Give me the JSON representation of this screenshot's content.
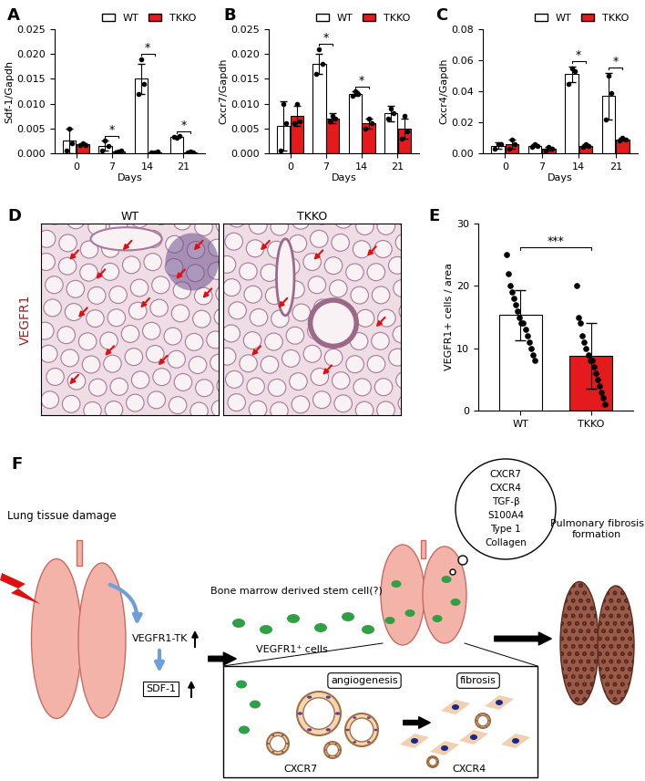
{
  "chart_data": [
    {
      "panel_label": "A",
      "type": "bar",
      "categories": [
        "0",
        "7",
        "14",
        "21"
      ],
      "xlabel": "Days",
      "ylabel": "Sdf-1/Gapdh",
      "ylim": [
        0,
        0.025
      ],
      "yticks": [
        {
          "value": 0,
          "label": "0.000"
        },
        {
          "value": 0.005,
          "label": "0.005"
        },
        {
          "value": 0.01,
          "label": "0.010"
        },
        {
          "value": 0.015,
          "label": "0.015"
        },
        {
          "value": 0.02,
          "label": "0.020"
        },
        {
          "value": 0.025,
          "label": "0.025"
        }
      ],
      "legend": "upper right",
      "series": [
        {
          "name": "WT",
          "color": "#ffffff",
          "values": [
            0.0025,
            0.0015,
            0.015,
            0.0033
          ],
          "errors": [
            0.0025,
            0.001,
            0.003,
            0.0002
          ],
          "points": [
            [
              0.0005,
              0.005,
              0.002
            ],
            [
              0.0005,
              0.0025,
              0.0015
            ],
            [
              0.012,
              0.019,
              0.014
            ],
            [
              0.0033,
              0.0032,
              0.0035
            ]
          ]
        },
        {
          "name": "TKKO",
          "color": "#e41a1c",
          "values": [
            0.0018,
            0.0003,
            0.0002,
            0.0002
          ],
          "errors": [
            0.0002,
            0.0002,
            0.0001,
            0.0002
          ],
          "points": [
            [
              0.0017,
              0.002,
              0.0017
            ],
            [
              0.0001,
              0.0003,
              0.0005
            ],
            [
              0.0002,
              0.0001,
              0.0003
            ],
            [
              0.0001,
              0.0004,
              0.0001
            ]
          ]
        }
      ],
      "annotations": [
        {
          "categories": [
            "7"
          ],
          "text": "*"
        },
        {
          "categories": [
            "14"
          ],
          "text": "*"
        },
        {
          "categories": [
            "21"
          ],
          "text": "*"
        }
      ]
    },
    {
      "panel_label": "B",
      "type": "bar",
      "categories": [
        "0",
        "7",
        "14",
        "21"
      ],
      "xlabel": "Days",
      "ylabel": "Cxcr7/Gapdh",
      "ylim": [
        0,
        0.025
      ],
      "yticks": [
        {
          "value": 0,
          "label": "0.000"
        },
        {
          "value": 0.005,
          "label": "0.005"
        },
        {
          "value": 0.01,
          "label": "0.010"
        },
        {
          "value": 0.015,
          "label": "0.015"
        },
        {
          "value": 0.02,
          "label": "0.020"
        },
        {
          "value": 0.025,
          "label": "0.025"
        }
      ],
      "legend": "upper right",
      "series": [
        {
          "name": "WT",
          "color": "#ffffff",
          "values": [
            0.0055,
            0.018,
            0.012,
            0.008
          ],
          "errors": [
            0.005,
            0.002,
            0.0005,
            0.0015
          ],
          "points": [
            [
              0.0005,
              0.01,
              0.006
            ],
            [
              0.016,
              0.021,
              0.018
            ],
            [
              0.0115,
              0.0125,
              0.012
            ],
            [
              0.007,
              0.009,
              0.008
            ]
          ]
        },
        {
          "name": "TKKO",
          "color": "#e41a1c",
          "values": [
            0.0075,
            0.007,
            0.006,
            0.005
          ],
          "errors": [
            0.002,
            0.001,
            0.001,
            0.002
          ],
          "points": [
            [
              0.006,
              0.01,
              0.0065
            ],
            [
              0.0065,
              0.0075,
              0.007
            ],
            [
              0.005,
              0.007,
              0.006
            ],
            [
              0.003,
              0.0075,
              0.0045
            ]
          ]
        }
      ],
      "annotations": [
        {
          "categories": [
            "7"
          ],
          "text": "*"
        },
        {
          "categories": [
            "14"
          ],
          "text": "*"
        }
      ]
    },
    {
      "panel_label": "C",
      "type": "bar",
      "categories": [
        "0",
        "7",
        "14",
        "21"
      ],
      "xlabel": "Days",
      "ylabel": "Cxcr4/Gapdh",
      "ylim": [
        0,
        0.08
      ],
      "yticks": [
        {
          "value": 0,
          "label": "0.00"
        },
        {
          "value": 0.02,
          "label": "0.02"
        },
        {
          "value": 0.04,
          "label": "0.04"
        },
        {
          "value": 0.06,
          "label": "0.06"
        },
        {
          "value": 0.08,
          "label": "0.08"
        }
      ],
      "legend": "upper right",
      "series": [
        {
          "name": "WT",
          "color": "#ffffff",
          "values": [
            0.005,
            0.005,
            0.051,
            0.037
          ],
          "errors": [
            0.002,
            0.001,
            0.005,
            0.015
          ],
          "points": [
            [
              0.003,
              0.006,
              0.006
            ],
            [
              0.004,
              0.006,
              0.005
            ],
            [
              0.045,
              0.055,
              0.053
            ],
            [
              0.022,
              0.05,
              0.039
            ]
          ]
        },
        {
          "name": "TKKO",
          "color": "#e41a1c",
          "values": [
            0.006,
            0.003,
            0.005,
            0.009
          ],
          "errors": [
            0.003,
            0.001,
            0.001,
            0.001
          ],
          "points": [
            [
              0.003,
              0.009,
              0.006
            ],
            [
              0.002,
              0.004,
              0.003
            ],
            [
              0.004,
              0.006,
              0.005
            ],
            [
              0.008,
              0.01,
              0.009
            ]
          ]
        }
      ],
      "annotations": [
        {
          "categories": [
            "14"
          ],
          "text": "*"
        },
        {
          "categories": [
            "21"
          ],
          "text": "*"
        }
      ]
    },
    {
      "panel_label": "E",
      "type": "bar",
      "categories": [
        "WT",
        "TKKO"
      ],
      "ylabel": "VEGFR1+ cells / area",
      "ylim": [
        0,
        30
      ],
      "yticks": [
        0,
        10,
        20,
        30
      ],
      "values": [
        15.3,
        8.8
      ],
      "errors": [
        4.0,
        5.3
      ],
      "colors": [
        "#ffffff",
        "#e41a1c"
      ],
      "points": [
        [
          25,
          22,
          20,
          19,
          18,
          17,
          16,
          15,
          14,
          14,
          13,
          12,
          11,
          10,
          9,
          8
        ],
        [
          20,
          15,
          14,
          12,
          11,
          10,
          9,
          8,
          8,
          7,
          6,
          5,
          4,
          3,
          2,
          1
        ]
      ],
      "annotations": [
        {
          "categories": [
            "WT",
            "TKKO"
          ],
          "text": "***"
        }
      ]
    }
  ],
  "panel_D": {
    "panel_label": "D",
    "stain_label": "VEGFR1",
    "titles": [
      "WT",
      "TKKO"
    ]
  },
  "panel_F": {
    "panel_label": "F",
    "lung_damage": "Lung tissue damage",
    "vegfr1_tk": "VEGFR1-TK",
    "sdf1": "SDF-1",
    "stem_cell": "Bone marrow derived stem cell(?)",
    "cells": "VEGFR1⁺ cells",
    "bubble": [
      "CXCR7",
      "CXCR4",
      "TGF-β",
      "S100A4",
      "Type 1",
      "Collagen"
    ],
    "outcome": "Pulmonary fibrosis\nformation",
    "angiogenesis": "angiogenesis",
    "fibrosis": "fibrosis",
    "angiogenesis_marker": "CXCR7",
    "fibrosis_marker": "CXCR4"
  }
}
